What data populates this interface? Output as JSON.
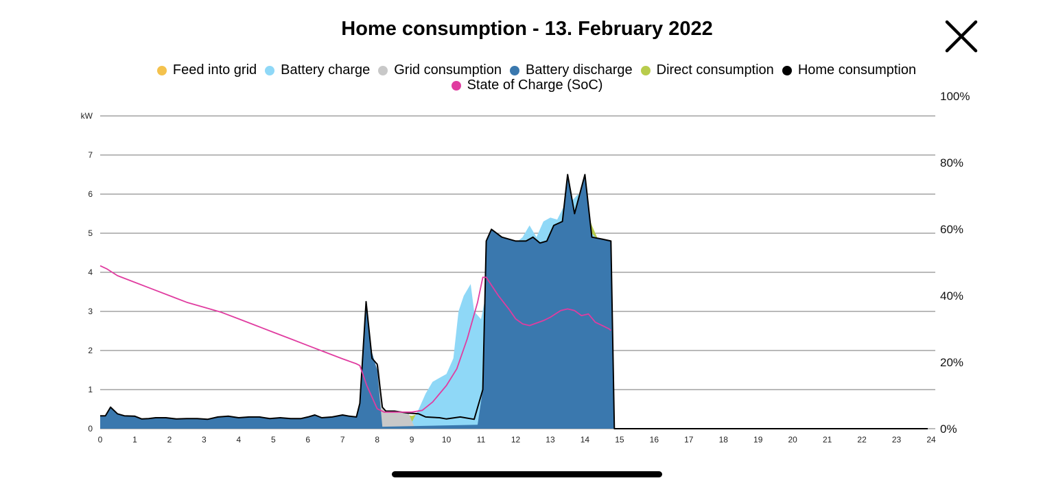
{
  "header": {
    "title": "Home consumption - 13. February 2022",
    "close_icon": "close-x-icon"
  },
  "legend": [
    {
      "label": "Feed into grid",
      "color": "#f4c24d"
    },
    {
      "label": "Battery charge",
      "color": "#8fd8f7"
    },
    {
      "label": "Grid consumption",
      "color": "#c8c8c8"
    },
    {
      "label": "Battery discharge",
      "color": "#3a78ae"
    },
    {
      "label": "Direct consumption",
      "color": "#b8cc4c"
    },
    {
      "label": "Home consumption",
      "color": "#000000"
    },
    {
      "label": "State of Charge (SoC)",
      "color": "#e03ca0"
    }
  ],
  "chart_data": {
    "type": "area",
    "title": "Home consumption - 13. February 2022",
    "ylabel": "kW",
    "ylim": [
      0,
      8
    ],
    "y_ticks": [
      "0",
      "1",
      "2",
      "3",
      "4",
      "5",
      "6",
      "7",
      "kW"
    ],
    "y2lim": [
      0,
      100
    ],
    "y2_ticks": [
      "0%",
      "20%",
      "40%",
      "60%",
      "80%",
      "100%"
    ],
    "xlim": [
      0,
      24
    ],
    "x_ticks": [
      "0",
      "1",
      "2",
      "3",
      "4",
      "5",
      "6",
      "7",
      "8",
      "9",
      "10",
      "11",
      "12",
      "13",
      "14",
      "15",
      "16",
      "17",
      "18",
      "19",
      "20",
      "21",
      "22",
      "23",
      "24"
    ],
    "grid": true,
    "legend_position": "top",
    "series": [
      {
        "name": "Direct consumption",
        "color": "#b8cc4c",
        "points": [
          [
            7.2,
            0
          ],
          [
            7.6,
            0.05
          ],
          [
            8,
            0.1
          ],
          [
            8.3,
            0.25
          ],
          [
            8.7,
            0.38
          ],
          [
            9,
            0.33
          ],
          [
            9.2,
            0.38
          ],
          [
            9.4,
            0.3
          ],
          [
            9.8,
            0.28
          ],
          [
            10,
            0.25
          ],
          [
            10.4,
            0.3
          ],
          [
            10.8,
            0.24
          ],
          [
            11,
            0.7
          ],
          [
            11.1,
            3.2
          ],
          [
            11.3,
            3.4
          ],
          [
            11.5,
            3.5
          ],
          [
            11.8,
            4.0
          ],
          [
            12,
            4.3
          ],
          [
            12.2,
            4.8
          ],
          [
            12.4,
            4.75
          ],
          [
            12.6,
            4.8
          ],
          [
            12.8,
            4.75
          ],
          [
            13,
            4.8
          ],
          [
            13.2,
            4.9
          ],
          [
            13.4,
            4.6
          ],
          [
            13.5,
            5.6
          ],
          [
            13.6,
            5.4
          ],
          [
            13.7,
            5.0
          ],
          [
            13.9,
            5.5
          ],
          [
            14.05,
            5.6
          ],
          [
            14.2,
            5.2
          ],
          [
            14.4,
            4.8
          ],
          [
            14.6,
            4.3
          ],
          [
            14.75,
            3.5
          ],
          [
            14.85,
            0
          ]
        ]
      },
      {
        "name": "Battery charge",
        "color": "#8fd8f7",
        "points": [
          [
            8.9,
            0
          ],
          [
            9.2,
            0.5
          ],
          [
            9.4,
            0.9
          ],
          [
            9.6,
            1.2
          ],
          [
            9.8,
            1.3
          ],
          [
            10,
            1.4
          ],
          [
            10.2,
            1.8
          ],
          [
            10.35,
            3.0
          ],
          [
            10.5,
            3.4
          ],
          [
            10.7,
            3.7
          ],
          [
            10.8,
            3.0
          ],
          [
            11,
            2.8
          ],
          [
            11.2,
            3.7
          ],
          [
            11.4,
            4.0
          ],
          [
            11.6,
            4.4
          ],
          [
            11.8,
            4.7
          ],
          [
            12,
            4.75
          ],
          [
            12.2,
            4.9
          ],
          [
            12.4,
            5.2
          ],
          [
            12.6,
            4.9
          ],
          [
            12.8,
            5.3
          ],
          [
            13,
            5.4
          ],
          [
            13.2,
            5.35
          ],
          [
            13.4,
            5.7
          ],
          [
            13.5,
            5.9
          ],
          [
            13.6,
            5.8
          ],
          [
            13.8,
            6.0
          ],
          [
            14,
            5.6
          ],
          [
            14.2,
            5.0
          ],
          [
            14.4,
            4.8
          ],
          [
            14.6,
            4.3
          ],
          [
            14.75,
            3.5
          ],
          [
            14.85,
            0
          ]
        ]
      },
      {
        "name": "Grid consumption",
        "color": "#c8c8c8",
        "points": [
          [
            7.5,
            0
          ],
          [
            7.8,
            0.8
          ],
          [
            8,
            1.5
          ],
          [
            8.05,
            1.65
          ],
          [
            8.15,
            0.55
          ],
          [
            8.25,
            0.45
          ],
          [
            8.5,
            0.45
          ],
          [
            8.9,
            0.4
          ],
          [
            9.1,
            0
          ]
        ]
      },
      {
        "name": "Battery discharge",
        "color": "#3a78ae",
        "points": [
          [
            0,
            0.33
          ],
          [
            0.15,
            0.33
          ],
          [
            0.3,
            0.55
          ],
          [
            0.5,
            0.38
          ],
          [
            0.7,
            0.33
          ],
          [
            1,
            0.32
          ],
          [
            1.2,
            0.25
          ],
          [
            1.4,
            0.26
          ],
          [
            1.6,
            0.28
          ],
          [
            1.9,
            0.28
          ],
          [
            2.2,
            0.25
          ],
          [
            2.5,
            0.26
          ],
          [
            2.8,
            0.26
          ],
          [
            3.1,
            0.24
          ],
          [
            3.4,
            0.3
          ],
          [
            3.7,
            0.32
          ],
          [
            4,
            0.28
          ],
          [
            4.3,
            0.3
          ],
          [
            4.6,
            0.3
          ],
          [
            4.9,
            0.26
          ],
          [
            5.2,
            0.28
          ],
          [
            5.5,
            0.26
          ],
          [
            5.8,
            0.26
          ],
          [
            6.0,
            0.3
          ],
          [
            6.2,
            0.35
          ],
          [
            6.4,
            0.28
          ],
          [
            6.7,
            0.3
          ],
          [
            7.0,
            0.35
          ],
          [
            7.2,
            0.32
          ],
          [
            7.4,
            0.3
          ],
          [
            7.5,
            0.65
          ],
          [
            7.68,
            3.2
          ],
          [
            7.85,
            1.95
          ],
          [
            8.0,
            1.5
          ],
          [
            8.15,
            0.05
          ],
          [
            10.9,
            0.1
          ],
          [
            11.05,
            1.0
          ],
          [
            11.15,
            4.8
          ],
          [
            11.3,
            5.1
          ],
          [
            11.6,
            4.9
          ],
          [
            12,
            4.8
          ],
          [
            12.3,
            4.8
          ],
          [
            12.5,
            4.9
          ],
          [
            12.7,
            4.75
          ],
          [
            12.9,
            4.8
          ],
          [
            13.1,
            5.2
          ],
          [
            13.35,
            5.3
          ],
          [
            13.5,
            6.5
          ],
          [
            13.7,
            5.5
          ],
          [
            14,
            6.5
          ],
          [
            14.2,
            4.9
          ],
          [
            14.5,
            4.85
          ],
          [
            14.75,
            4.8
          ],
          [
            14.85,
            0
          ]
        ]
      },
      {
        "name": "Home consumption",
        "color": "#000000",
        "points": [
          [
            0,
            0.33
          ],
          [
            0.15,
            0.33
          ],
          [
            0.3,
            0.55
          ],
          [
            0.5,
            0.38
          ],
          [
            0.7,
            0.33
          ],
          [
            1,
            0.32
          ],
          [
            1.2,
            0.25
          ],
          [
            1.4,
            0.26
          ],
          [
            1.6,
            0.28
          ],
          [
            1.9,
            0.28
          ],
          [
            2.2,
            0.25
          ],
          [
            2.5,
            0.26
          ],
          [
            2.8,
            0.26
          ],
          [
            3.1,
            0.24
          ],
          [
            3.4,
            0.3
          ],
          [
            3.7,
            0.32
          ],
          [
            4,
            0.28
          ],
          [
            4.3,
            0.3
          ],
          [
            4.6,
            0.3
          ],
          [
            4.9,
            0.26
          ],
          [
            5.2,
            0.28
          ],
          [
            5.5,
            0.26
          ],
          [
            5.8,
            0.26
          ],
          [
            6.0,
            0.3
          ],
          [
            6.2,
            0.35
          ],
          [
            6.4,
            0.28
          ],
          [
            6.7,
            0.3
          ],
          [
            7.0,
            0.35
          ],
          [
            7.2,
            0.32
          ],
          [
            7.4,
            0.3
          ],
          [
            7.5,
            0.65
          ],
          [
            7.68,
            3.25
          ],
          [
            7.85,
            1.8
          ],
          [
            8.0,
            1.65
          ],
          [
            8.15,
            0.55
          ],
          [
            8.25,
            0.45
          ],
          [
            8.5,
            0.45
          ],
          [
            8.9,
            0.4
          ],
          [
            9.2,
            0.38
          ],
          [
            9.4,
            0.3
          ],
          [
            9.8,
            0.28
          ],
          [
            10,
            0.25
          ],
          [
            10.4,
            0.3
          ],
          [
            10.8,
            0.24
          ],
          [
            11.05,
            1.0
          ],
          [
            11.15,
            4.8
          ],
          [
            11.3,
            5.1
          ],
          [
            11.6,
            4.9
          ],
          [
            12,
            4.8
          ],
          [
            12.3,
            4.8
          ],
          [
            12.5,
            4.9
          ],
          [
            12.7,
            4.75
          ],
          [
            12.9,
            4.8
          ],
          [
            13.1,
            5.2
          ],
          [
            13.35,
            5.3
          ],
          [
            13.5,
            6.5
          ],
          [
            13.7,
            5.5
          ],
          [
            14,
            6.5
          ],
          [
            14.2,
            4.9
          ],
          [
            14.5,
            4.85
          ],
          [
            14.75,
            4.8
          ],
          [
            14.85,
            0
          ],
          [
            23.9,
            0
          ]
        ]
      },
      {
        "name": "State of Charge (SoC)",
        "color": "#e03ca0",
        "axis": "right",
        "points": [
          [
            0,
            49
          ],
          [
            0.2,
            48
          ],
          [
            0.5,
            46
          ],
          [
            1,
            44
          ],
          [
            1.5,
            42
          ],
          [
            2,
            40
          ],
          [
            2.5,
            38
          ],
          [
            3,
            36.5
          ],
          [
            3.5,
            35
          ],
          [
            4,
            33
          ],
          [
            4.5,
            31
          ],
          [
            5,
            29
          ],
          [
            5.5,
            27
          ],
          [
            6,
            25
          ],
          [
            6.5,
            23
          ],
          [
            7,
            21
          ],
          [
            7.4,
            19.5
          ],
          [
            7.5,
            19
          ],
          [
            7.7,
            13
          ],
          [
            8,
            6
          ],
          [
            8.2,
            5
          ],
          [
            8.5,
            5
          ],
          [
            9,
            5
          ],
          [
            9.3,
            5.5
          ],
          [
            9.6,
            8
          ],
          [
            10,
            13
          ],
          [
            10.3,
            18
          ],
          [
            10.6,
            27
          ],
          [
            10.9,
            38
          ],
          [
            11.05,
            45.5
          ],
          [
            11.15,
            45.5
          ],
          [
            11.5,
            40
          ],
          [
            11.8,
            36
          ],
          [
            12,
            33
          ],
          [
            12.2,
            31.5
          ],
          [
            12.4,
            31
          ],
          [
            12.8,
            32.5
          ],
          [
            13,
            33.5
          ],
          [
            13.3,
            35.5
          ],
          [
            13.5,
            36
          ],
          [
            13.7,
            35.5
          ],
          [
            13.9,
            34
          ],
          [
            14.1,
            34.5
          ],
          [
            14.3,
            32
          ],
          [
            14.5,
            31
          ],
          [
            14.7,
            30
          ],
          [
            14.75,
            29.5
          ]
        ]
      }
    ]
  }
}
